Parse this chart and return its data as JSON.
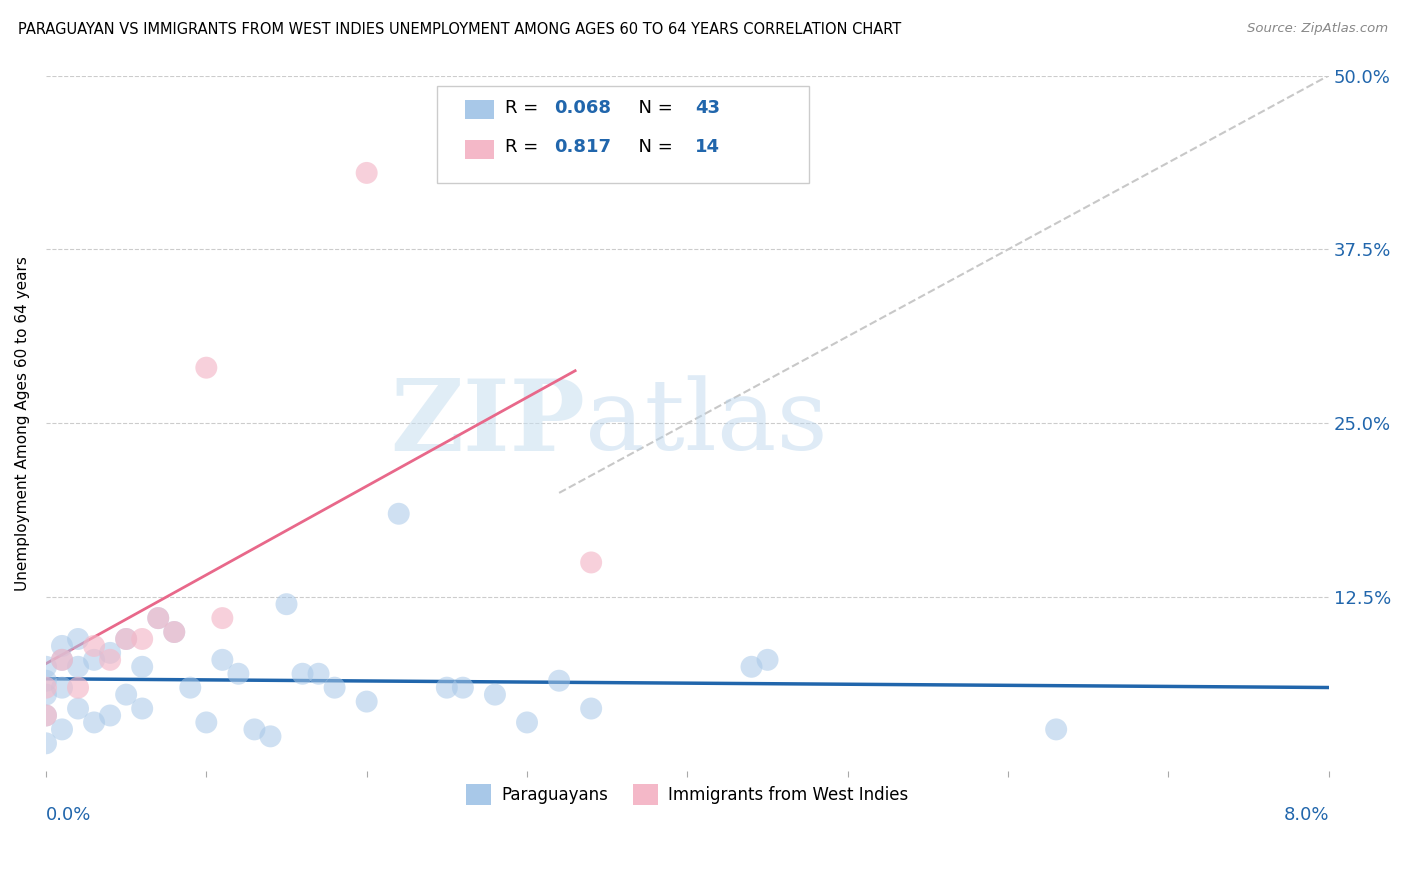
{
  "title": "PARAGUAYAN VS IMMIGRANTS FROM WEST INDIES UNEMPLOYMENT AMONG AGES 60 TO 64 YEARS CORRELATION CHART",
  "source": "Source: ZipAtlas.com",
  "ylabel": "Unemployment Among Ages 60 to 64 years",
  "watermark_zip": "ZIP",
  "watermark_atlas": "atlas",
  "legend_r1_val": "0.068",
  "legend_n1_val": "43",
  "legend_r2_val": "0.817",
  "legend_n2_val": "14",
  "blue_color": "#a8c8e8",
  "blue_line_color": "#2166ac",
  "pink_color": "#f4b8c8",
  "pink_line_color": "#e8688a",
  "diag_line_color": "#c8c8c8",
  "label_color": "#2166ac",
  "ytick_color": "#2166ac",
  "xlim": [
    0.0,
    0.08
  ],
  "ylim": [
    0.0,
    0.5
  ],
  "paraguayan_x": [
    0.0,
    0.0,
    0.0,
    0.0,
    0.0,
    0.001,
    0.001,
    0.001,
    0.001,
    0.002,
    0.002,
    0.002,
    0.003,
    0.003,
    0.004,
    0.004,
    0.005,
    0.005,
    0.006,
    0.006,
    0.007,
    0.008,
    0.009,
    0.01,
    0.011,
    0.012,
    0.013,
    0.014,
    0.015,
    0.016,
    0.017,
    0.018,
    0.02,
    0.022,
    0.025,
    0.026,
    0.028,
    0.03,
    0.032,
    0.034,
    0.044,
    0.045,
    0.063
  ],
  "paraguayan_y": [
    0.02,
    0.04,
    0.055,
    0.065,
    0.075,
    0.03,
    0.06,
    0.08,
    0.09,
    0.045,
    0.075,
    0.095,
    0.035,
    0.08,
    0.04,
    0.085,
    0.055,
    0.095,
    0.045,
    0.075,
    0.11,
    0.1,
    0.06,
    0.035,
    0.08,
    0.07,
    0.03,
    0.025,
    0.12,
    0.07,
    0.07,
    0.06,
    0.05,
    0.185,
    0.06,
    0.06,
    0.055,
    0.035,
    0.065,
    0.045,
    0.075,
    0.08,
    0.03
  ],
  "westindies_x": [
    0.0,
    0.0,
    0.001,
    0.002,
    0.003,
    0.004,
    0.005,
    0.006,
    0.007,
    0.008,
    0.01,
    0.011,
    0.02,
    0.034
  ],
  "westindies_y": [
    0.04,
    0.06,
    0.08,
    0.06,
    0.09,
    0.08,
    0.095,
    0.095,
    0.11,
    0.1,
    0.29,
    0.11,
    0.43,
    0.15
  ]
}
